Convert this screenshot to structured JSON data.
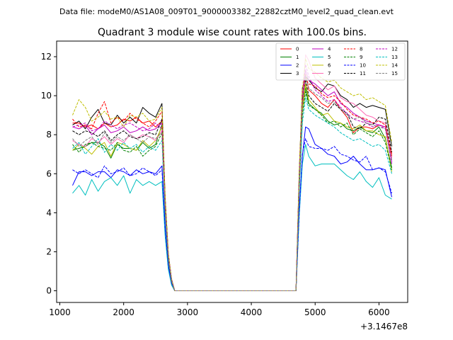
{
  "header": {
    "datafile": "Data file: modeM0/AS1A08_009T01_9000003382_22882cztM0_level2_quad_clean.evt"
  },
  "chart_data": {
    "type": "line",
    "title": "Quadrant 3 module wise count rates with 100.0s bins.",
    "xlabel": "",
    "ylabel": "",
    "x_offset_label": "+3.1467e8",
    "xlim": [
      950,
      6450
    ],
    "ylim": [
      -0.6,
      12.8
    ],
    "xticks": [
      1000,
      2000,
      3000,
      4000,
      5000,
      6000
    ],
    "xtick_labels": [
      "1000",
      "2000",
      "3000",
      "4000",
      "5000",
      "6000"
    ],
    "yticks": [
      0,
      2,
      4,
      6,
      8,
      10,
      12
    ],
    "ytick_labels": [
      "0",
      "2",
      "4",
      "6",
      "8",
      "10",
      "12"
    ],
    "grid": false,
    "legend_position": "top-right",
    "x": [
      1200,
      1300,
      1400,
      1500,
      1600,
      1700,
      1800,
      1900,
      2000,
      2100,
      2200,
      2300,
      2400,
      2500,
      2600,
      2650,
      2700,
      2750,
      2800,
      2900,
      3000,
      3200,
      3400,
      3600,
      3800,
      4000,
      4200,
      4400,
      4600,
      4700,
      4750,
      4800,
      4850,
      4900,
      5000,
      5100,
      5200,
      5300,
      5400,
      5500,
      5600,
      5700,
      5800,
      5900,
      6000,
      6100,
      6200
    ],
    "series": [
      {
        "name": "0",
        "color": "#ff0000",
        "dash": "solid",
        "values": [
          8.6,
          8.6,
          8.4,
          8.5,
          8.3,
          8.6,
          8.4,
          8.5,
          8.8,
          8.7,
          8.9,
          8.6,
          8.7,
          8.4,
          8.7,
          4.5,
          1.8,
          0.6,
          0,
          0,
          0,
          0,
          0,
          0,
          0,
          0,
          0,
          0,
          0,
          0,
          5.6,
          9.5,
          11.1,
          10.3,
          10.0,
          9.6,
          9.4,
          9.8,
          9.3,
          8.9,
          8.1,
          8.4,
          8.4,
          8.3,
          8.5,
          8.4,
          7.0
        ]
      },
      {
        "name": "1",
        "color": "#008000",
        "dash": "solid",
        "values": [
          7.2,
          7.3,
          7.4,
          7.6,
          7.6,
          7.4,
          6.8,
          7.5,
          7.3,
          7.3,
          7.2,
          7.6,
          7.3,
          7.5,
          8.5,
          4.4,
          1.7,
          0.5,
          0,
          0,
          0,
          0,
          0,
          0,
          0,
          0,
          0,
          0,
          0,
          0,
          5.3,
          9.3,
          10.4,
          9.6,
          9.3,
          9.1,
          8.7,
          8.5,
          8.6,
          8.3,
          8.2,
          8.4,
          8.2,
          8.1,
          8.4,
          7.8,
          6.3
        ]
      },
      {
        "name": "2",
        "color": "#0000ff",
        "dash": "solid",
        "values": [
          5.4,
          6.1,
          6.1,
          5.9,
          6.1,
          6.1,
          5.8,
          6.2,
          6.1,
          5.9,
          6.2,
          6.0,
          6.1,
          6.0,
          6.4,
          3.3,
          1.3,
          0.4,
          0,
          0,
          0,
          0,
          0,
          0,
          0,
          0,
          0,
          0,
          0,
          0,
          4.1,
          6.9,
          8.4,
          8.3,
          7.5,
          7.3,
          7.0,
          6.9,
          6.5,
          6.6,
          6.9,
          6.5,
          6.2,
          6.2,
          6.3,
          6.2,
          4.8
        ]
      },
      {
        "name": "3",
        "color": "#000000",
        "dash": "solid",
        "values": [
          8.5,
          8.7,
          8.3,
          8.9,
          9.3,
          8.6,
          8.5,
          9.0,
          8.6,
          8.9,
          8.6,
          9.4,
          9.1,
          8.9,
          9.6,
          4.8,
          1.9,
          0.6,
          0,
          0,
          0,
          0,
          0,
          0,
          0,
          0,
          0,
          0,
          0,
          0,
          6.0,
          10.4,
          11.0,
          10.8,
          10.4,
          10.2,
          10.6,
          10.5,
          10.0,
          9.8,
          9.4,
          9.6,
          9.4,
          9.5,
          9.4,
          9.3,
          7.4
        ]
      },
      {
        "name": "4",
        "color": "#bf00bf",
        "dash": "solid",
        "values": [
          8.4,
          8.3,
          8.5,
          8.0,
          8.3,
          8.5,
          8.1,
          8.2,
          8.4,
          8.1,
          8.2,
          8.4,
          8.2,
          8.3,
          8.6,
          4.5,
          1.8,
          0.6,
          0,
          0,
          0,
          0,
          0,
          0,
          0,
          0,
          0,
          0,
          0,
          0,
          5.8,
          10.0,
          11.3,
          10.8,
          10.6,
          10.3,
          10.0,
          10.2,
          9.6,
          9.4,
          9.1,
          8.9,
          8.7,
          8.6,
          8.5,
          8.4,
          6.6
        ]
      },
      {
        "name": "5",
        "color": "#00bfbf",
        "dash": "solid",
        "values": [
          5.0,
          5.4,
          4.9,
          5.7,
          5.1,
          5.6,
          5.8,
          5.4,
          5.9,
          5.0,
          5.7,
          5.4,
          5.6,
          5.4,
          5.6,
          2.8,
          1.1,
          0.3,
          0,
          0,
          0,
          0,
          0,
          0,
          0,
          0,
          0,
          0,
          0,
          0,
          3.8,
          6.5,
          7.5,
          6.9,
          6.4,
          6.5,
          6.5,
          6.5,
          6.2,
          5.9,
          5.7,
          6.1,
          5.6,
          5.3,
          5.8,
          4.9,
          4.7
        ]
      },
      {
        "name": "6",
        "color": "#bfbf00",
        "dash": "solid",
        "values": [
          7.2,
          7.5,
          7.3,
          7.0,
          7.4,
          7.6,
          6.9,
          7.6,
          7.5,
          7.3,
          7.2,
          7.7,
          7.4,
          7.7,
          8.4,
          4.3,
          1.7,
          0.5,
          0,
          0,
          0,
          0,
          0,
          0,
          0,
          0,
          0,
          0,
          0,
          0,
          5.2,
          9.2,
          10.6,
          9.8,
          9.4,
          9.0,
          9.1,
          8.7,
          8.6,
          8.4,
          8.3,
          8.5,
          8.2,
          8.2,
          8.0,
          7.9,
          6.1
        ]
      },
      {
        "name": "7",
        "color": "#ff69b4",
        "dash": "solid",
        "values": [
          7.7,
          7.5,
          7.4,
          7.8,
          7.6,
          7.9,
          7.5,
          7.8,
          7.6,
          8.0,
          7.8,
          8.0,
          7.9,
          7.7,
          8.2,
          4.3,
          1.7,
          0.5,
          0,
          0,
          0,
          0,
          0,
          0,
          0,
          0,
          0,
          0,
          0,
          0,
          5.5,
          9.8,
          12.1,
          11.8,
          10.9,
          10.6,
          10.3,
          10.5,
          9.9,
          9.7,
          9.6,
          9.3,
          9.0,
          8.9,
          8.7,
          8.6,
          6.8
        ]
      },
      {
        "name": "8",
        "color": "#ff0000",
        "dash": "dashed",
        "values": [
          8.8,
          8.4,
          8.5,
          8.3,
          9.1,
          9.7,
          8.6,
          8.9,
          8.7,
          9.1,
          8.8,
          8.6,
          8.4,
          8.7,
          9.2,
          4.7,
          1.9,
          0.6,
          0,
          0,
          0,
          0,
          0,
          0,
          0,
          0,
          0,
          0,
          0,
          0,
          5.9,
          10.2,
          10.9,
          10.6,
          10.5,
          10.1,
          9.9,
          10.0,
          9.7,
          9.3,
          9.0,
          8.9,
          8.8,
          8.6,
          8.7,
          8.5,
          6.9
        ]
      },
      {
        "name": "9",
        "color": "#008000",
        "dash": "dashed",
        "values": [
          7.5,
          7.1,
          7.5,
          7.6,
          7.4,
          7.3,
          7.2,
          7.6,
          7.2,
          7.1,
          7.4,
          6.9,
          7.2,
          7.4,
          8.1,
          4.1,
          1.6,
          0.5,
          0,
          0,
          0,
          0,
          0,
          0,
          0,
          0,
          0,
          0,
          0,
          0,
          5.1,
          9.0,
          10.2,
          9.5,
          9.3,
          9.0,
          8.6,
          8.7,
          8.4,
          8.6,
          8.0,
          8.3,
          8.1,
          7.9,
          8.2,
          7.6,
          6.2
        ]
      },
      {
        "name": "10",
        "color": "#0000ff",
        "dash": "dashed",
        "values": [
          6.2,
          6.0,
          6.2,
          6.0,
          5.8,
          6.4,
          6.0,
          6.1,
          6.3,
          5.9,
          6.0,
          6.3,
          6.1,
          5.9,
          6.2,
          3.2,
          1.3,
          0.4,
          0,
          0,
          0,
          0,
          0,
          0,
          0,
          0,
          0,
          0,
          0,
          0,
          4.0,
          7.0,
          7.8,
          7.4,
          7.3,
          7.3,
          7.2,
          7.4,
          7.0,
          6.9,
          6.7,
          6.6,
          6.9,
          6.2,
          6.3,
          6.1,
          5.0
        ]
      },
      {
        "name": "11",
        "color": "#000000",
        "dash": "dashed",
        "values": [
          8.2,
          8.0,
          8.2,
          8.1,
          7.9,
          8.2,
          7.7,
          8.0,
          8.2,
          7.9,
          7.8,
          7.9,
          8.1,
          8.0,
          8.8,
          4.5,
          1.8,
          0.6,
          0,
          0,
          0,
          0,
          0,
          0,
          0,
          0,
          0,
          0,
          0,
          0,
          5.6,
          9.8,
          10.8,
          10.0,
          9.6,
          9.4,
          9.2,
          9.6,
          9.3,
          9.1,
          8.4,
          8.3,
          8.6,
          8.5,
          8.9,
          8.8,
          7.1
        ]
      },
      {
        "name": "12",
        "color": "#bf00bf",
        "dash": "dashed",
        "values": [
          8.4,
          8.5,
          8.6,
          8.2,
          8.3,
          8.7,
          8.5,
          8.3,
          8.5,
          8.6,
          8.4,
          8.2,
          8.3,
          8.6,
          8.3,
          4.4,
          1.8,
          0.6,
          0,
          0,
          0,
          0,
          0,
          0,
          0,
          0,
          0,
          0,
          0,
          0,
          5.7,
          9.9,
          11.6,
          11.0,
          10.3,
          10.0,
          9.7,
          9.8,
          9.4,
          9.1,
          8.8,
          8.7,
          8.6,
          8.4,
          8.5,
          8.3,
          6.5
        ]
      },
      {
        "name": "13",
        "color": "#00bfbf",
        "dash": "dashed",
        "values": [
          7.3,
          7.6,
          7.0,
          7.4,
          7.8,
          7.1,
          7.5,
          7.2,
          7.6,
          7.3,
          7.5,
          7.1,
          7.4,
          7.2,
          7.7,
          3.9,
          1.6,
          0.5,
          0,
          0,
          0,
          0,
          0,
          0,
          0,
          0,
          0,
          0,
          0,
          0,
          5.0,
          8.6,
          9.9,
          9.3,
          9.0,
          8.8,
          8.6,
          8.4,
          8.1,
          7.9,
          7.7,
          7.8,
          7.6,
          7.4,
          7.5,
          7.2,
          6.0
        ]
      },
      {
        "name": "14",
        "color": "#bfbf00",
        "dash": "dashed",
        "values": [
          9.0,
          9.8,
          9.4,
          8.7,
          8.9,
          9.2,
          8.8,
          8.9,
          8.4,
          9.0,
          8.9,
          9.1,
          8.7,
          8.8,
          9.4,
          4.8,
          1.9,
          0.6,
          0,
          0,
          0,
          0,
          0,
          0,
          0,
          0,
          0,
          0,
          0,
          0,
          6.1,
          10.3,
          11.9,
          11.4,
          11.2,
          10.9,
          10.7,
          10.8,
          10.4,
          10.2,
          10.0,
          10.1,
          9.8,
          9.9,
          9.7,
          9.5,
          7.6
        ]
      },
      {
        "name": "15",
        "color": "#808080",
        "dash": "dashed",
        "values": [
          7.8,
          7.4,
          7.7,
          7.9,
          7.5,
          8.1,
          7.6,
          7.9,
          7.7,
          8.0,
          7.8,
          7.6,
          7.9,
          7.8,
          8.1,
          4.2,
          1.7,
          0.5,
          0,
          0,
          0,
          0,
          0,
          0,
          0,
          0,
          0,
          0,
          0,
          0,
          5.4,
          9.5,
          11.0,
          10.4,
          10.1,
          9.9,
          9.6,
          9.7,
          9.3,
          9.0,
          8.8,
          8.9,
          8.6,
          8.5,
          8.4,
          8.3,
          6.7
        ]
      }
    ]
  }
}
